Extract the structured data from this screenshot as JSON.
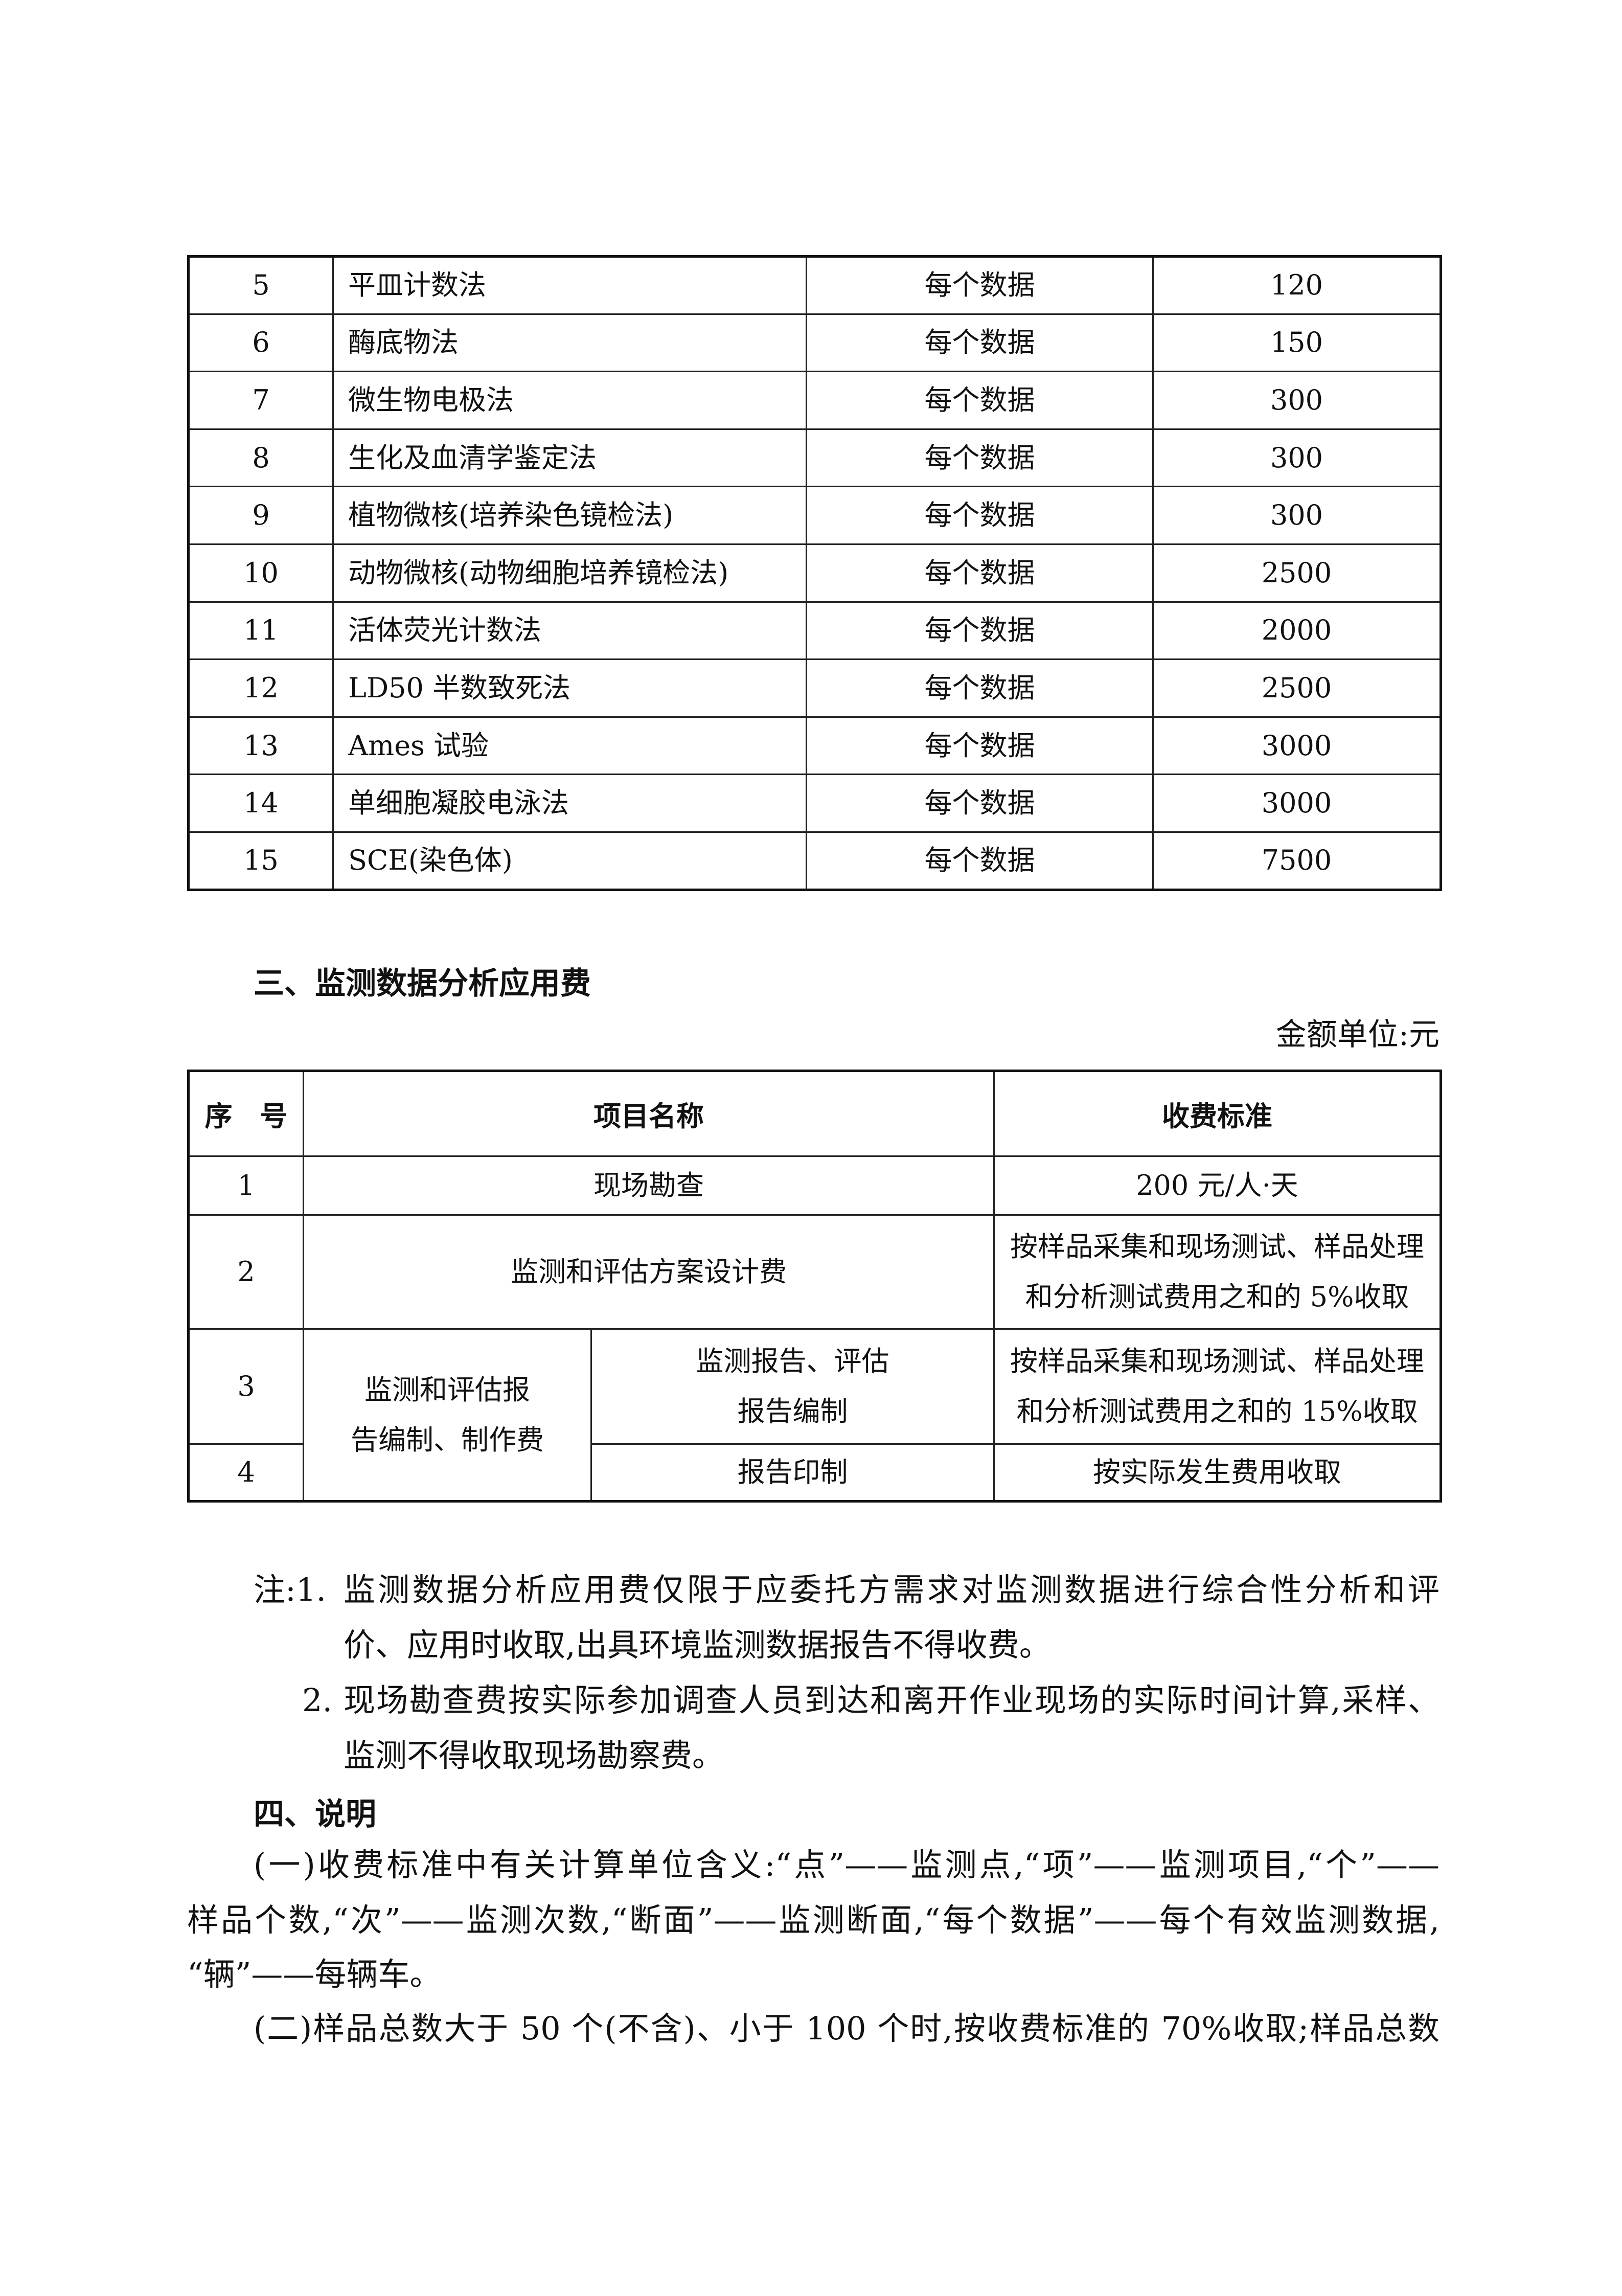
{
  "table1": {
    "rows": [
      {
        "no": "5",
        "name": "平皿计数法",
        "unit": "每个数据",
        "price": "120"
      },
      {
        "no": "6",
        "name": "酶底物法",
        "unit": "每个数据",
        "price": "150"
      },
      {
        "no": "7",
        "name": "微生物电极法",
        "unit": "每个数据",
        "price": "300"
      },
      {
        "no": "8",
        "name": "生化及血清学鉴定法",
        "unit": "每个数据",
        "price": "300"
      },
      {
        "no": "9",
        "name": "植物微核(培养染色镜检法)",
        "unit": "每个数据",
        "price": "300"
      },
      {
        "no": "10",
        "name": "动物微核(动物细胞培养镜检法)",
        "unit": "每个数据",
        "price": "2500"
      },
      {
        "no": "11",
        "name": "活体荧光计数法",
        "unit": "每个数据",
        "price": "2000"
      },
      {
        "no": "12",
        "name": "LD50 半数致死法",
        "unit": "每个数据",
        "price": "2500"
      },
      {
        "no": "13",
        "name": "Ames 试验",
        "unit": "每个数据",
        "price": "3000"
      },
      {
        "no": "14",
        "name": "单细胞凝胶电泳法",
        "unit": "每个数据",
        "price": "3000"
      },
      {
        "no": "15",
        "name": "SCE(染色体)",
        "unit": "每个数据",
        "price": "7500"
      }
    ]
  },
  "section3": {
    "title": "三、监测数据分析应用费",
    "unit_note": "金额单位:元"
  },
  "table2": {
    "headers": [
      "序　号",
      "项目名称",
      "收费标准"
    ],
    "r1": {
      "no": "1",
      "name": "现场勘查",
      "fee": "200 元/人·天"
    },
    "r2": {
      "no": "2",
      "name": "监测和评估方案设计费",
      "fee_l1": "按样品采集和现场测试、样品处理",
      "fee_l2": "和分析测试费用之和的 5%收取"
    },
    "r3": {
      "no": "3",
      "group_l1": "监测和评估报",
      "group_l2": "告编制、制作费",
      "name_l1": "监测报告、评估",
      "name_l2": "报告编制",
      "fee_l1": "按样品采集和现场测试、样品处理",
      "fee_l2": "和分析测试费用之和的 15%收取"
    },
    "r4": {
      "no": "4",
      "name": "报告印制",
      "fee": "按实际发生费用收取"
    }
  },
  "notes": {
    "prefix": "注:1.",
    "n1_l1": "监测数据分析应用费仅限于应委托方需求对监测数据进行综合性分析和评",
    "n1_l2": "价、应用时收取,出具环境监测数据报告不得收费。",
    "n2_no": "2.",
    "n2_l1": "现场勘查费按实际参加调查人员到达和离开作业现场的实际时间计算,采样、",
    "n2_l2": "监测不得收取现场勘察费。"
  },
  "section4": {
    "title": "四、说明",
    "p1_l1": "(一)收费标准中有关计算单位含义:“点”——监测点,“项”——监测项目,“个”——",
    "p1_l2": "样品个数,“次”——监测次数,“断面”——监测断面,“每个数据”——每个有效监测数据,",
    "p1_l3": "“辆”——每辆车。",
    "p2_l1": "(二)样品总数大于 50 个(不含)、小于 100 个时,按收费标准的 70%收取;样品总数"
  }
}
